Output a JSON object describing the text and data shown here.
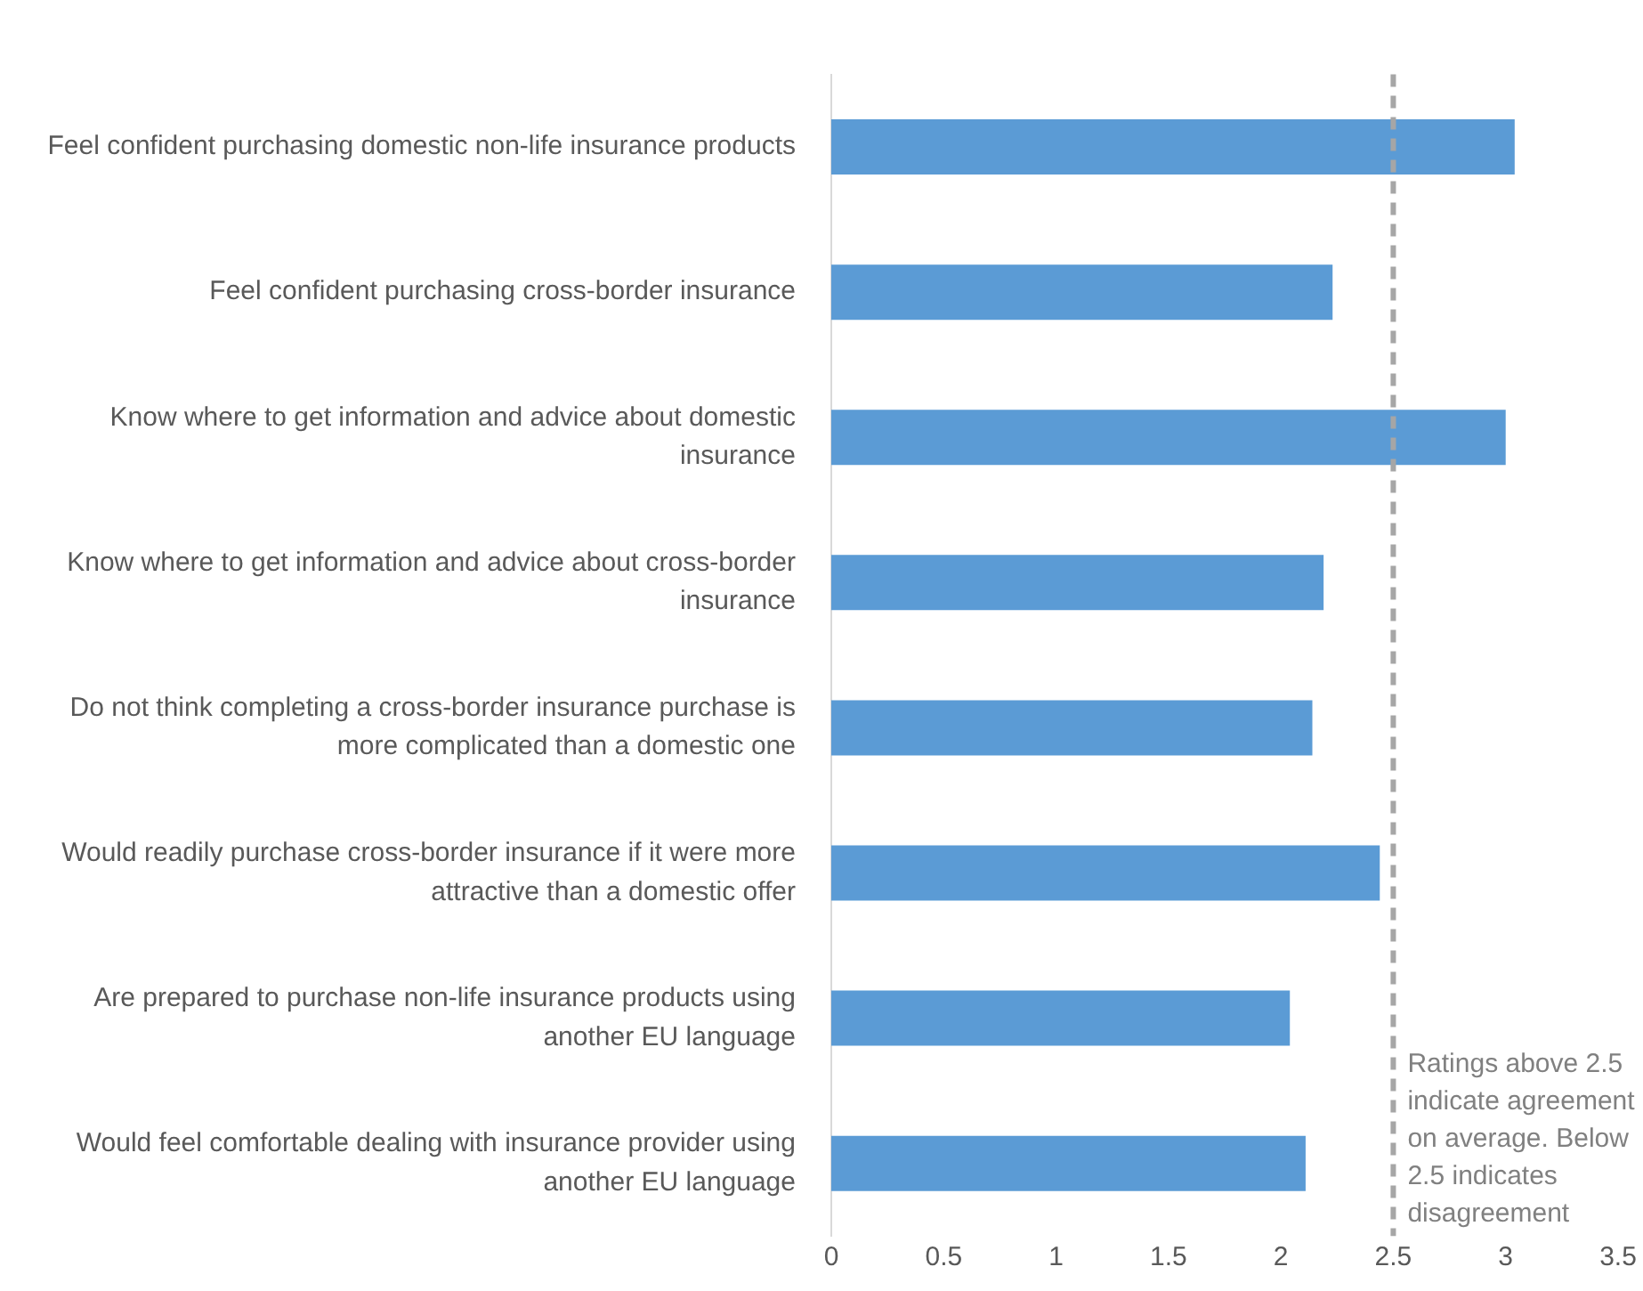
{
  "chart_data": {
    "type": "bar",
    "orientation": "horizontal",
    "categories": [
      "Feel confident purchasing domestic non-life insurance products",
      "Feel confident purchasing cross-border insurance",
      "Know where to get information and advice about domestic insurance",
      "Know where to get information and advice about cross-border insurance",
      "Do not think completing a cross-border insurance purchase is more complicated than a domestic one",
      "Would readily purchase cross-border insurance if it were more attractive than a domestic offer",
      "Are prepared to purchase non-life insurance products using another EU language",
      "Would feel comfortable dealing with insurance provider using another EU language"
    ],
    "values": [
      3.04,
      2.23,
      3.0,
      2.19,
      2.14,
      2.44,
      2.04,
      2.11
    ],
    "color": "#5b9bd5",
    "xlim": [
      0,
      3.5
    ],
    "xticks": [
      0,
      0.5,
      1,
      1.5,
      2,
      2.5,
      3,
      3.5
    ],
    "grid": false,
    "legend": false,
    "ref_lines": [
      {
        "axis": "x",
        "value": 2.5,
        "label": "Ratings above 2.5 indicate agreement on average. Below 2.5 indicates disagreement",
        "color": "#a6a6a6",
        "line_style": "dashed"
      }
    ]
  }
}
